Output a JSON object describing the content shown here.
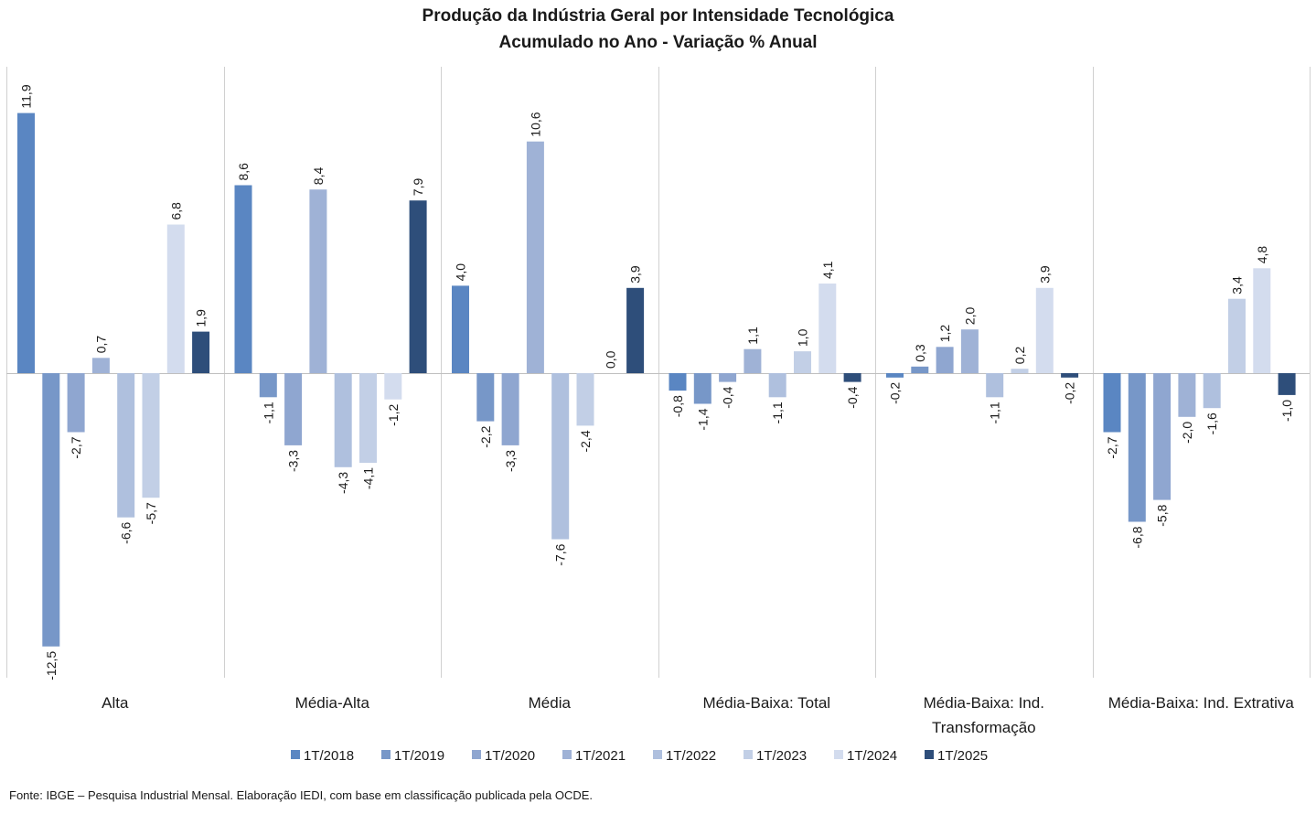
{
  "chart_data": {
    "type": "bar",
    "title": "Produção da Indústria Geral por Intensidade Tecnológica",
    "subtitle": "Acumulado no Ano - Variação % Anual",
    "categories": [
      [
        "Alta"
      ],
      [
        "Média-Alta"
      ],
      [
        "Média"
      ],
      [
        "Média-Baixa: Total"
      ],
      [
        "Média-Baixa: Ind.",
        "Transformação"
      ],
      [
        "Média-Baixa: Ind. Extrativa"
      ]
    ],
    "series": [
      {
        "name": "1T/2018",
        "color": "#5a86c2",
        "values": [
          11.9,
          8.6,
          4.0,
          -0.8,
          -0.2,
          -2.7
        ],
        "labels": [
          "11,9",
          "8,6",
          "4,0",
          "-0,8",
          "-0,2",
          "-2,7"
        ]
      },
      {
        "name": "1T/2019",
        "color": "#7797c8",
        "values": [
          -12.5,
          -1.1,
          -2.2,
          -1.4,
          0.3,
          -6.8
        ],
        "labels": [
          "-12,5",
          "-1,1",
          "-2,2",
          "-1,4",
          "0,3",
          "-6,8"
        ]
      },
      {
        "name": "1T/2020",
        "color": "#8fa6d0",
        "values": [
          -2.7,
          -3.3,
          -3.3,
          -0.4,
          1.2,
          -5.8
        ],
        "labels": [
          "-2,7",
          "-3,3",
          "-3,3",
          "-0,4",
          "1,2",
          "-5,8"
        ]
      },
      {
        "name": "1T/2021",
        "color": "#9fb2d6",
        "values": [
          0.7,
          8.4,
          10.6,
          1.1,
          2.0,
          -2.0
        ],
        "labels": [
          "0,7",
          "8,4",
          "10,6",
          "1,1",
          "2,0",
          "-2,0"
        ]
      },
      {
        "name": "1T/2022",
        "color": "#afc0de",
        "values": [
          -6.6,
          -4.3,
          -7.6,
          -1.1,
          -1.1,
          -1.6
        ],
        "labels": [
          "-6,6",
          "-4,3",
          "-7,6",
          "-1,1",
          "-1,1",
          "-1,6"
        ]
      },
      {
        "name": "1T/2023",
        "color": "#c2cfe6",
        "values": [
          -5.7,
          -4.1,
          -2.4,
          1.0,
          0.2,
          3.4
        ],
        "labels": [
          "-5,7",
          "-4,1",
          "-2,4",
          "1,0",
          "0,2",
          "3,4"
        ]
      },
      {
        "name": "1T/2024",
        "color": "#d3dcee",
        "values": [
          6.8,
          -1.2,
          0.0,
          4.1,
          3.9,
          4.8
        ],
        "labels": [
          "6,8",
          "-1,2",
          "0,0",
          "4,1",
          "3,9",
          "4,8"
        ]
      },
      {
        "name": "1T/2025",
        "color": "#2e4e7a",
        "values": [
          1.9,
          7.9,
          3.9,
          -0.4,
          -0.2,
          -1.0
        ],
        "labels": [
          "1,9",
          "7,9",
          "3,9",
          "-0,4",
          "-0,2",
          "-1,0"
        ]
      }
    ],
    "legend": "bottom",
    "grid": false
  },
  "source": "Fonte: IBGE – Pesquisa Industrial Mensal. Elaboração IEDI, com base em classificação publicada pela OCDE."
}
